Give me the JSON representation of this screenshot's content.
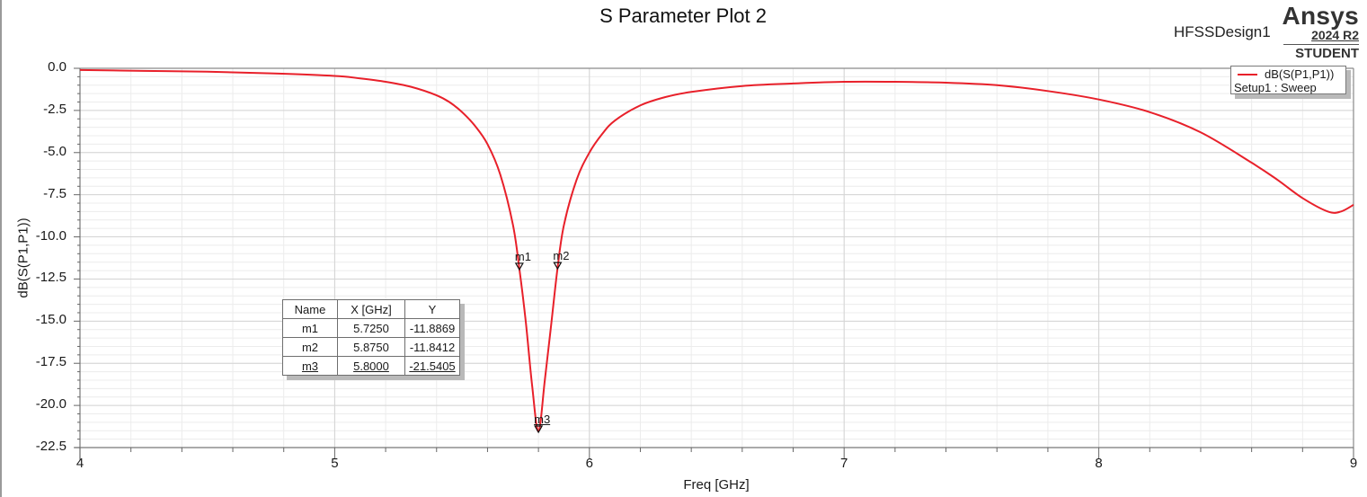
{
  "header": {
    "title": "S Parameter Plot 2",
    "design_name": "HFSSDesign1",
    "brand": {
      "name": "Ansys",
      "version": "2024 R2",
      "edition": "STUDENT"
    }
  },
  "legend": {
    "trace_name": "dB(S(P1,P1))",
    "sweep": "Setup1 : Sweep",
    "trace_color": "#e8202a"
  },
  "marker_table": {
    "headers": [
      "Name",
      "X [GHz]",
      "Y"
    ],
    "rows": [
      {
        "name": "m1",
        "x": "5.7250",
        "y": "-11.8869"
      },
      {
        "name": "m2",
        "x": "5.8750",
        "y": "-11.8412"
      },
      {
        "name": "m3",
        "x": "5.8000",
        "y": "-21.5405"
      }
    ]
  },
  "axes": {
    "xlabel": "Freq [GHz]",
    "ylabel": "dB(S(P1,P1))",
    "x_ticks": [
      "4",
      "5",
      "6",
      "7",
      "8",
      "9"
    ],
    "y_ticks": [
      "0.0",
      "-2.5",
      "-5.0",
      "-7.5",
      "-10.0",
      "-12.5",
      "-15.0",
      "-17.5",
      "-20.0",
      "-22.5"
    ]
  },
  "chart_data": {
    "type": "line",
    "title": "S Parameter Plot 2",
    "xlabel": "Freq [GHz]",
    "ylabel": "dB(S(P1,P1))",
    "xlim": [
      4,
      9
    ],
    "ylim": [
      -22.5,
      0.0
    ],
    "grid": true,
    "legend_position": "top-right",
    "x_ticks": [
      4,
      5,
      6,
      7,
      8,
      9
    ],
    "y_ticks": [
      0.0,
      -2.5,
      -5.0,
      -7.5,
      -10.0,
      -12.5,
      -15.0,
      -17.5,
      -20.0,
      -22.5
    ],
    "series": [
      {
        "name": "dB(S(P1,P1))",
        "sweep": "Setup1 : Sweep",
        "color": "#e8202a",
        "x": [
          4.0,
          4.25,
          4.5,
          4.75,
          5.0,
          5.1,
          5.2,
          5.3,
          5.4,
          5.45,
          5.5,
          5.55,
          5.6,
          5.65,
          5.7,
          5.725,
          5.75,
          5.775,
          5.8,
          5.825,
          5.85,
          5.875,
          5.9,
          5.95,
          6.0,
          6.05,
          6.1,
          6.2,
          6.3,
          6.4,
          6.6,
          6.8,
          7.0,
          7.2,
          7.4,
          7.6,
          7.8,
          8.0,
          8.2,
          8.4,
          8.6,
          8.7,
          8.8,
          8.9,
          8.95,
          9.0
        ],
        "y": [
          -0.1,
          -0.15,
          -0.2,
          -0.3,
          -0.45,
          -0.6,
          -0.8,
          -1.1,
          -1.6,
          -2.0,
          -2.6,
          -3.4,
          -4.5,
          -6.3,
          -9.3,
          -11.89,
          -15.0,
          -18.8,
          -21.54,
          -18.5,
          -15.2,
          -11.84,
          -9.3,
          -6.6,
          -5.0,
          -3.9,
          -3.1,
          -2.2,
          -1.7,
          -1.4,
          -1.05,
          -0.9,
          -0.8,
          -0.8,
          -0.85,
          -1.0,
          -1.35,
          -1.85,
          -2.6,
          -3.8,
          -5.6,
          -6.6,
          -7.7,
          -8.5,
          -8.5,
          -8.1
        ]
      }
    ],
    "markers": [
      {
        "name": "m1",
        "x": 5.725,
        "y": -11.8869
      },
      {
        "name": "m2",
        "x": 5.875,
        "y": -11.8412
      },
      {
        "name": "m3",
        "x": 5.8,
        "y": -21.5405
      }
    ]
  }
}
